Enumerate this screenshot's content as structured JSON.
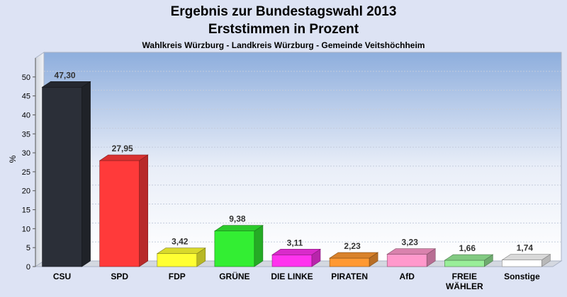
{
  "chart_data": {
    "type": "bar",
    "title": "Ergebnis zur Bundestagswahl 2013",
    "subtitle": "Erststimmen in Prozent",
    "subtitle2": "Wahlkreis Würzburg - Landkreis Würzburg - Gemeinde Veitshöchheim",
    "ylabel": "%",
    "ylim": [
      0,
      55
    ],
    "yticks": [
      0,
      5,
      10,
      15,
      20,
      25,
      30,
      35,
      40,
      45,
      50
    ],
    "categories": [
      [
        "CSU"
      ],
      [
        "SPD"
      ],
      [
        "FDP"
      ],
      [
        "GRÜNE"
      ],
      [
        "DIE LINKE"
      ],
      [
        "PIRATEN"
      ],
      [
        "AfD"
      ],
      [
        "FREIE",
        "WÄHLER"
      ],
      [
        "Sonstige"
      ]
    ],
    "values": [
      47.3,
      27.95,
      3.42,
      9.38,
      3.11,
      2.23,
      3.23,
      1.66,
      1.74
    ],
    "value_labels": [
      "47,30",
      "27,95",
      "3,42",
      "9,38",
      "3,11",
      "2,23",
      "3,23",
      "1,66",
      "1,74"
    ],
    "colors": [
      "#2b2f38",
      "#ff3a3a",
      "#ffff33",
      "#33ee33",
      "#ff33ee",
      "#ff9933",
      "#ff99cc",
      "#99ee99",
      "#ffffff"
    ],
    "grid": true,
    "legend": "none"
  }
}
